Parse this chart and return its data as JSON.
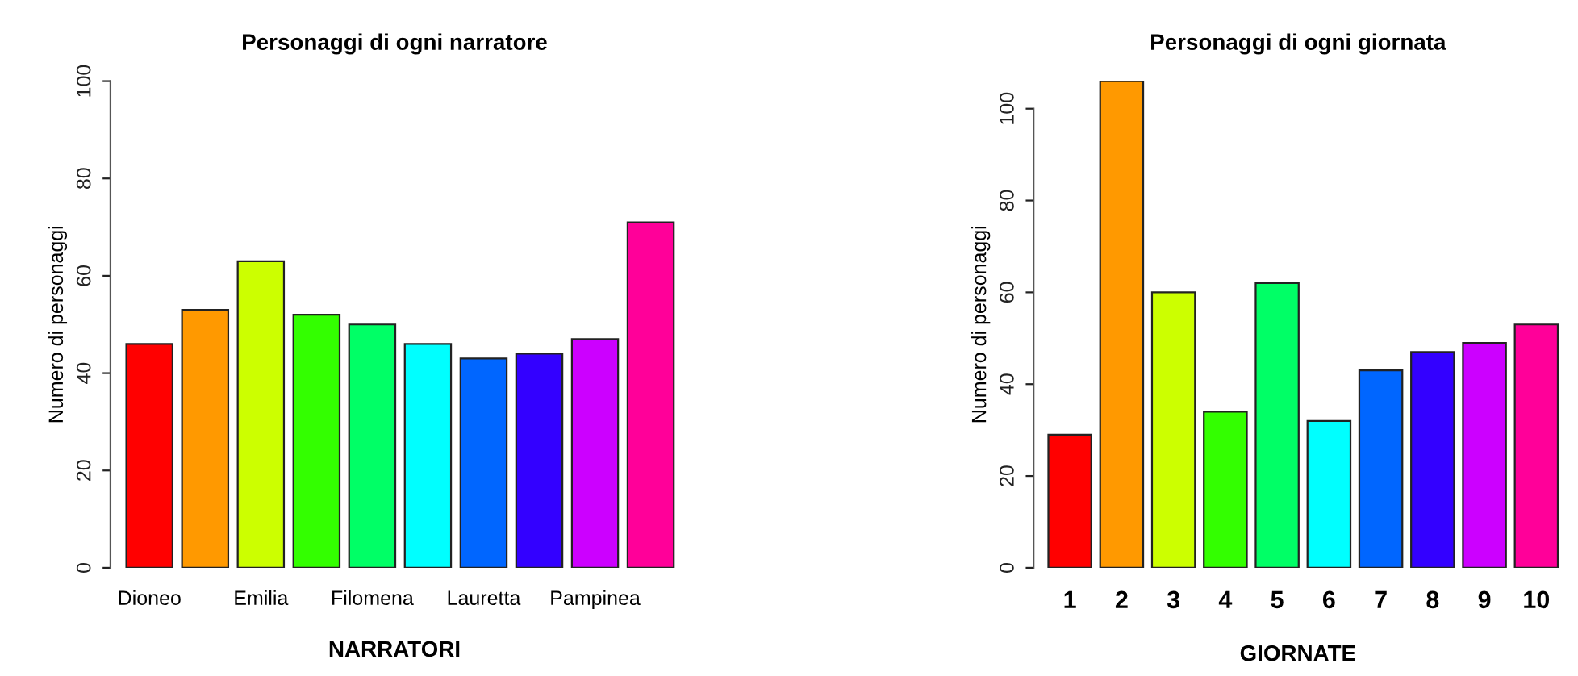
{
  "chart_data": [
    {
      "type": "bar",
      "title": "Personaggi di ogni narratore",
      "xlabel": "NARRATORI",
      "ylabel": "Numero di personaggi",
      "categories": [
        "Dioneo",
        null,
        "Emilia",
        null,
        "Filomena",
        null,
        "Lauretta",
        null,
        "Pampinea",
        null
      ],
      "values": [
        46,
        53,
        63,
        52,
        50,
        46,
        43,
        44,
        47,
        71
      ],
      "colors": [
        "#ff0000",
        "#ff9900",
        "#ccff00",
        "#33ff00",
        "#00ff66",
        "#00ffff",
        "#0066ff",
        "#3300ff",
        "#cc00ff",
        "#ff0099"
      ],
      "ylim": [
        0,
        100
      ],
      "yticks": [
        0,
        20,
        40,
        60,
        80,
        100
      ],
      "grid": false,
      "legend": false
    },
    {
      "type": "bar",
      "title": "Personaggi di ogni giornata",
      "xlabel": "GIORNATE",
      "ylabel": "Numero di personaggi",
      "categories": [
        "1",
        "2",
        "3",
        "4",
        "5",
        "6",
        "7",
        "8",
        "9",
        "10"
      ],
      "values": [
        29,
        106,
        60,
        34,
        62,
        32,
        43,
        47,
        49,
        53
      ],
      "colors": [
        "#ff0000",
        "#ff9900",
        "#ccff00",
        "#33ff00",
        "#00ff66",
        "#00ffff",
        "#0066ff",
        "#3300ff",
        "#cc00ff",
        "#ff0099"
      ],
      "ylim": [
        0,
        106
      ],
      "yticks": [
        0,
        20,
        40,
        60,
        80,
        100
      ],
      "grid": false,
      "legend": false
    }
  ]
}
